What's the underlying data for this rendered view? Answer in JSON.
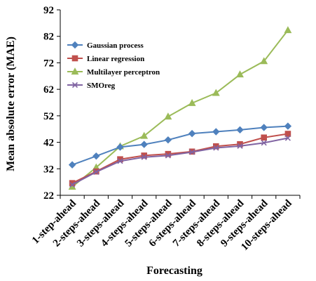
{
  "chart_data": {
    "type": "line",
    "title": "",
    "xlabel": "Forecasting",
    "ylabel": "Mean absolute error (MAE)",
    "ylim": [
      22,
      92
    ],
    "yticks": [
      22,
      32,
      42,
      52,
      62,
      72,
      82,
      92
    ],
    "categories": [
      "1-step-ahead",
      "2-steps-ahead",
      "3-steps-ahead",
      "4-steps-ahead",
      "5-steps-ahead",
      "6-steps-ahead",
      "7-steps-ahead",
      "8-steps-ahead",
      "9-steps-ahead",
      "10-steps-ahead"
    ],
    "grid": false,
    "legend_position": "top-left",
    "series": [
      {
        "name": "Gaussian process",
        "color": "#4F81BD",
        "marker": "diamond",
        "values": [
          33.5,
          36.8,
          40.2,
          41.2,
          42.9,
          45.3,
          46.0,
          46.7,
          47.6,
          48.1
        ]
      },
      {
        "name": "Linear regression",
        "color": "#C0504D",
        "marker": "square",
        "values": [
          26.6,
          31.0,
          35.6,
          37.0,
          37.6,
          38.5,
          40.5,
          41.3,
          43.8,
          45.2
        ]
      },
      {
        "name": "Multilayer perceptron",
        "color": "#9BBB59",
        "marker": "triangle",
        "values": [
          25.2,
          32.5,
          40.5,
          44.4,
          51.7,
          56.8,
          60.6,
          67.6,
          72.6,
          84.3
        ]
      },
      {
        "name": "SMOreg",
        "color": "#8064A2",
        "marker": "x",
        "values": [
          26.0,
          30.8,
          34.9,
          36.4,
          37.0,
          38.3,
          39.9,
          40.6,
          41.8,
          43.6
        ]
      }
    ]
  }
}
